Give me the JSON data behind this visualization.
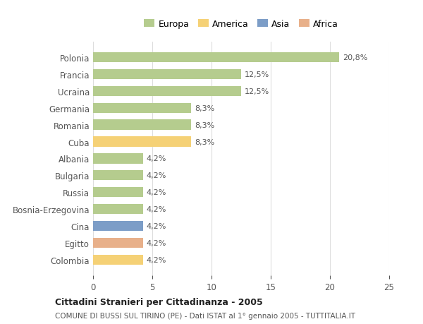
{
  "categories": [
    "Polonia",
    "Francia",
    "Ucraina",
    "Germania",
    "Romania",
    "Cuba",
    "Albania",
    "Bulgaria",
    "Russia",
    "Bosnia-Erzegovina",
    "Cina",
    "Egitto",
    "Colombia"
  ],
  "values": [
    20.8,
    12.5,
    12.5,
    8.3,
    8.3,
    8.3,
    4.2,
    4.2,
    4.2,
    4.2,
    4.2,
    4.2,
    4.2
  ],
  "labels": [
    "20,8%",
    "12,5%",
    "12,5%",
    "8,3%",
    "8,3%",
    "8,3%",
    "4,2%",
    "4,2%",
    "4,2%",
    "4,2%",
    "4,2%",
    "4,2%",
    "4,2%"
  ],
  "continents": [
    "Europa",
    "Europa",
    "Europa",
    "Europa",
    "Europa",
    "America",
    "Europa",
    "Europa",
    "Europa",
    "Europa",
    "Asia",
    "Africa",
    "America"
  ],
  "colors": {
    "Europa": "#b5cc8e",
    "America": "#f5d176",
    "Asia": "#7c9dc7",
    "Africa": "#e8b08a"
  },
  "legend_order": [
    "Europa",
    "America",
    "Asia",
    "Africa"
  ],
  "legend_colors": [
    "#b5cc8e",
    "#f5d176",
    "#7c9dc7",
    "#e8b08a"
  ],
  "title": "Cittadini Stranieri per Cittadinanza - 2005",
  "subtitle": "COMUNE DI BUSSI SUL TIRINO (PE) - Dati ISTAT al 1° gennaio 2005 - TUTTITALIA.IT",
  "xlim": [
    0,
    25
  ],
  "xticks": [
    0,
    5,
    10,
    15,
    20,
    25
  ],
  "background_color": "#ffffff",
  "grid_color": "#dddddd",
  "bar_height": 0.6
}
